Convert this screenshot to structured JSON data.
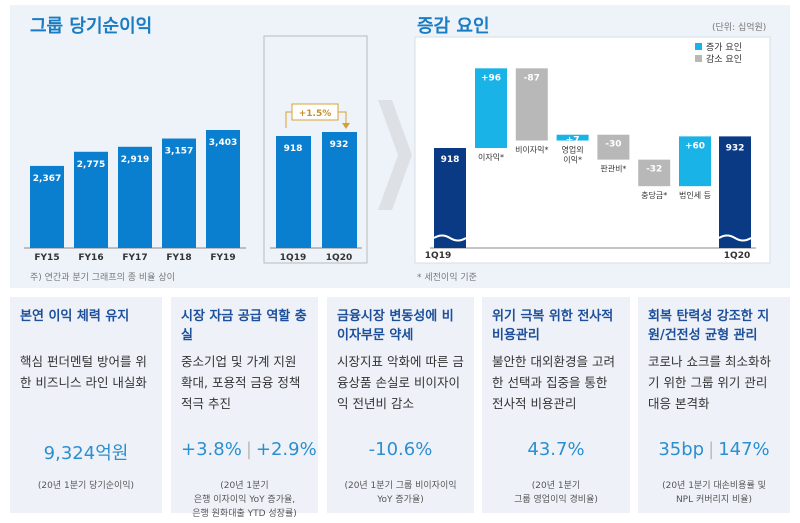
{
  "left": {
    "title": "그룹 당기순이익",
    "footnote": "주) 연간과 분기 그래프의 종 비율 상이"
  },
  "right": {
    "title": "증감 요인",
    "unit": "(단위: 십억원)",
    "footnote": "* 세전이익 기준",
    "legend": [
      {
        "label": "증가 요인",
        "color": "#1ab3e8"
      },
      {
        "label": "감소 요인",
        "color": "#b8b8b8"
      }
    ]
  },
  "chart_data": [
    {
      "type": "bar",
      "categories": [
        "FY15",
        "FY16",
        "FY17",
        "FY18",
        "FY19"
      ],
      "values": [
        2367,
        2775,
        2919,
        3157,
        3403
      ],
      "labels": [
        "2,367",
        "2,775",
        "2,919",
        "3,157",
        "3,403"
      ],
      "color": "#0a7fd0"
    },
    {
      "type": "bar",
      "categories": [
        "1Q19",
        "1Q20"
      ],
      "values": [
        918,
        932
      ],
      "labels": [
        "918",
        "932"
      ],
      "annotation": "+1.5%",
      "color": "#0a7fd0"
    },
    {
      "type": "waterfall",
      "start": {
        "label": "1Q19",
        "value": 918,
        "text": "918"
      },
      "steps": [
        {
          "label": "이자익*",
          "value": 96,
          "text": "+96"
        },
        {
          "label": "비이자익*",
          "value": -87,
          "text": "-87"
        },
        {
          "label": "영업외\n이익*",
          "value": 7,
          "text": "+7"
        },
        {
          "label": "판관비*",
          "value": -30,
          "text": "-30"
        },
        {
          "label": "충당금*",
          "value": -32,
          "text": "-32"
        },
        {
          "label": "법인세 등",
          "value": 60,
          "text": "+60"
        }
      ],
      "end": {
        "label": "1Q20",
        "value": 932,
        "text": "932"
      },
      "colors": {
        "total": "#0b3a85",
        "increase": "#1ab3e8",
        "decrease": "#b8b8b8"
      }
    }
  ],
  "cards": [
    {
      "title": "본연 이익 체력 유지",
      "body": "핵심 펀더멘털 방어를 위한 비즈니스 라인 내실화",
      "value": [
        "9,324억원"
      ],
      "note": "(20년 1분기 당기순이익)"
    },
    {
      "title": "시장 자금 공급 역할 충실",
      "body": "중소기업 및 가계 지원 확대, 포용적 금융 정책 적극 추진",
      "value": [
        "+3.8%",
        "+2.9%"
      ],
      "note": "(20년 1분기\n은행 이자이익 YoY 증가율,\n은행 원화대출  YTD 성장률)"
    },
    {
      "title": "금융시장 변동성에 비이자부문 약세",
      "body": "시장지표 악화에 따른 금융상품 손실로 비이자이익 전년비 감소",
      "value": [
        "-10.6%"
      ],
      "note": "(20년 1분기 그룹 비이자이익\nYoY 증가율)"
    },
    {
      "title": "위기 극복 위한 전사적 비용관리",
      "body": "불안한 대외환경을 고려한 선택과 집중을 통한 전사적 비용관리",
      "value": [
        "43.7%"
      ],
      "note": "(20년 1분기\n그룹 영업이익 경비율)"
    },
    {
      "title": "회복 탄력성 강조한 지원/건전성 균형 관리",
      "body": "코로나 쇼크를 최소화하기 위한 그룹 위기 관리 대응 본격화",
      "value": [
        "35bp",
        "147%"
      ],
      "note": "(20년 1분기 대손비용률 및\nNPL 커버리지 비율)"
    }
  ]
}
